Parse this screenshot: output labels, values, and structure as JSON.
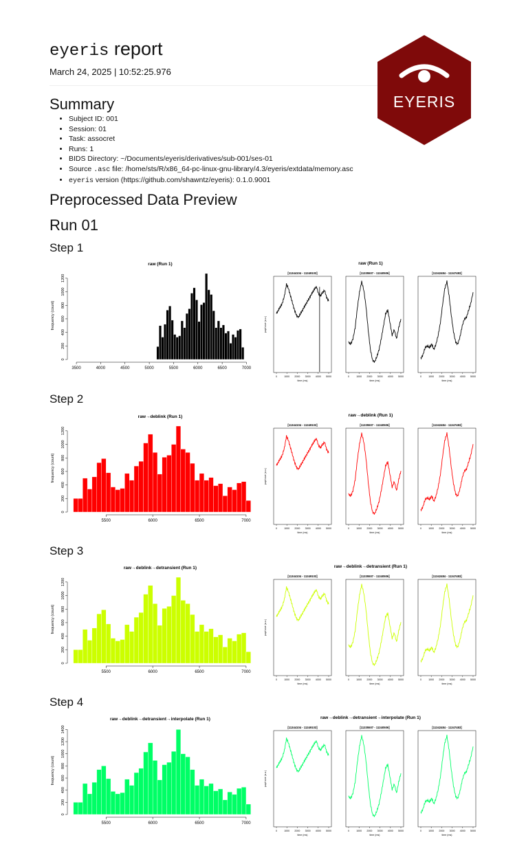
{
  "header": {
    "title_mono": "eyeris",
    "title_rest": " report",
    "date": "March 24, 2025 | 10:52:25.976",
    "logo_text": "EYERIS",
    "logo_icon": "eye-icon",
    "logo_color": "#7f0a0a"
  },
  "summary": {
    "heading": "Summary",
    "items": [
      "Subject ID: 001",
      "Session: 01",
      "Task: assocret",
      "Runs: 1",
      "BIDS Directory: ~/Documents/eyeris/derivatives/sub-001/ses-01"
    ],
    "source_prefix": "Source ",
    "source_code": ".asc",
    "source_rest": " file: /home/sts/R/x86_64-pc-linux-gnu-library/4.3/eyeris/extdata/memory.asc",
    "version_code": "eyeris",
    "version_rest": " version (https://github.com/shawntz/eyeris): 0.1.0.9001"
  },
  "preview": {
    "heading": "Preprocessed Data Preview",
    "run_heading": "Run 01"
  },
  "steps": [
    {
      "heading": "Step 1",
      "hist_title": "raw (Run 1)",
      "ts_title": "raw (Run 1)",
      "color": "#000000"
    },
    {
      "heading": "Step 2",
      "hist_title": "raw→deblink (Run 1)",
      "ts_title": "raw→deblink (Run 1)",
      "color": "#ff0000"
    },
    {
      "heading": "Step 3",
      "hist_title": "raw→deblink→detransient (Run 1)",
      "ts_title": "raw→deblink→detransient (Run 1)",
      "color": "#ccff00"
    },
    {
      "heading": "Step 4",
      "hist_title": "raw→deblink→detransient→interpolate (Run 1)",
      "ts_title": "raw→deblink→detransient→interpolate (Run 1)",
      "color": "#00ff66"
    }
  ],
  "chart_data": [
    {
      "type": "bar",
      "title": "raw (Run 1)",
      "ylabel": "frequency (count)",
      "xlim": [
        3400,
        7050
      ],
      "xticks": [
        3500,
        4000,
        4500,
        5000,
        5500,
        6000,
        6500,
        7000
      ],
      "ylim": [
        0,
        1300
      ],
      "yticks": [
        0,
        200,
        400,
        600,
        800,
        1000,
        1200
      ],
      "bin_start": 5150,
      "bin_width": 50,
      "values": [
        190,
        500,
        330,
        520,
        730,
        790,
        580,
        370,
        330,
        350,
        570,
        470,
        680,
        750,
        980,
        1060,
        880,
        560,
        810,
        840,
        1270,
        1030,
        960,
        720,
        470,
        570,
        470,
        510,
        390,
        420,
        240,
        370,
        330,
        430,
        450,
        180
      ]
    },
    {
      "type": "bar",
      "title": "raw→deblink (Run 1)",
      "ylabel": "frequency (count)",
      "xlim": [
        5130,
        7030
      ],
      "xticks": [
        5500,
        6000,
        6500,
        7000
      ],
      "ylim": [
        0,
        1300
      ],
      "yticks": [
        0,
        200,
        400,
        600,
        800,
        1000,
        1200
      ],
      "bin_start": 5150,
      "bin_width": 50,
      "values": [
        200,
        200,
        500,
        340,
        520,
        730,
        790,
        580,
        370,
        330,
        350,
        570,
        470,
        680,
        750,
        1020,
        1150,
        880,
        560,
        810,
        840,
        1000,
        1270,
        930,
        880,
        720,
        470,
        570,
        470,
        510,
        390,
        420,
        240,
        370,
        330,
        430,
        450,
        170
      ]
    },
    {
      "type": "bar",
      "title": "raw→deblink→detransient (Run 1)",
      "ylabel": "frequency (count)",
      "xlim": [
        5130,
        7030
      ],
      "xticks": [
        5500,
        6000,
        6500,
        7000
      ],
      "ylim": [
        0,
        1300
      ],
      "yticks": [
        0,
        200,
        400,
        600,
        800,
        1000,
        1200
      ],
      "bin_start": 5150,
      "bin_width": 50,
      "values": [
        200,
        200,
        500,
        340,
        520,
        730,
        790,
        580,
        370,
        330,
        350,
        570,
        470,
        680,
        750,
        1020,
        1150,
        880,
        560,
        810,
        840,
        1000,
        1270,
        930,
        880,
        720,
        470,
        570,
        470,
        510,
        390,
        420,
        240,
        370,
        330,
        430,
        450,
        170
      ]
    },
    {
      "type": "bar",
      "title": "raw→deblink→detransient→interpolate (Run 1)",
      "ylabel": "frequency (count)",
      "xlim": [
        5130,
        7030
      ],
      "xticks": [
        5500,
        6000,
        6500,
        7000
      ],
      "ylim": [
        0,
        1450
      ],
      "yticks": [
        0,
        200,
        400,
        600,
        800,
        1000,
        1200,
        1400
      ],
      "bin_start": 5150,
      "bin_width": 50,
      "values": [
        200,
        200,
        510,
        340,
        530,
        740,
        800,
        590,
        380,
        340,
        360,
        580,
        480,
        690,
        760,
        1030,
        1180,
        890,
        570,
        820,
        860,
        1040,
        1400,
        1000,
        950,
        740,
        480,
        580,
        470,
        510,
        390,
        420,
        240,
        370,
        330,
        430,
        450,
        170
      ]
    },
    {
      "type": "line",
      "title": "raw (Run 1)",
      "ylabel": "pupil size (a.u.)",
      "xlabel": "time (ms)",
      "xticks": [
        0,
        1000,
        2000,
        3000,
        4000,
        5000
      ],
      "panels": [
        {
          "title": "[11344104 - 11349103]",
          "y": [
            0.62,
            0.66,
            0.7,
            0.74,
            0.82,
            0.95,
            0.9,
            0.82,
            0.74,
            0.66,
            0.6,
            0.58,
            0.62,
            0.66,
            0.7,
            0.74,
            0.78,
            0.82,
            0.86,
            0.9,
            0.92,
            0.84,
            0.82,
            0.86,
            0.88,
            0.8,
            0.76
          ]
        },
        {
          "title": "[11335507 - 11340506]",
          "y": [
            0.3,
            0.28,
            0.34,
            0.46,
            0.68,
            0.86,
            0.98,
            0.88,
            0.7,
            0.44,
            0.22,
            0.1,
            0.08,
            0.14,
            0.22,
            0.34,
            0.48,
            0.62,
            0.66,
            0.52,
            0.38,
            0.44,
            0.34,
            0.46,
            0.56
          ]
        },
        {
          "title": "[11342484 - 11347483]",
          "y": [
            0.12,
            0.16,
            0.24,
            0.26,
            0.24,
            0.28,
            0.22,
            0.28,
            0.38,
            0.52,
            0.72,
            0.9,
            0.98,
            0.82,
            0.6,
            0.42,
            0.3,
            0.28,
            0.36,
            0.48,
            0.56,
            0.58,
            0.66,
            0.74,
            0.86
          ]
        }
      ]
    }
  ]
}
